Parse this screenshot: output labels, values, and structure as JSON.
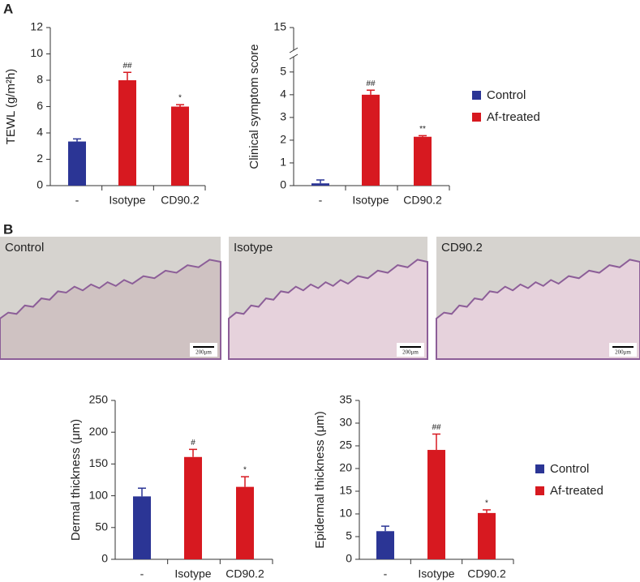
{
  "panels": [
    "A",
    "B"
  ],
  "micrographs": [
    {
      "label": "Control",
      "scale_bar": "200μm"
    },
    {
      "label": "Isotype",
      "scale_bar": "200μm"
    },
    {
      "label": "CD90.2",
      "scale_bar": "200μm"
    }
  ],
  "chart_data": [
    {
      "type": "bar",
      "y_label": "TEWL (g/m²h)",
      "categories": [
        "-",
        "Isotype",
        "CD90.2"
      ],
      "series": [
        {
          "name": "Control",
          "color": "#2b3595",
          "values": [
            3.35,
            null,
            null
          ],
          "errors": [
            0.2,
            null,
            null
          ]
        },
        {
          "name": "Af-treated",
          "color": "#d71920",
          "values": [
            null,
            8.0,
            6.0
          ],
          "errors": [
            null,
            0.6,
            0.15
          ]
        }
      ],
      "significance": [
        null,
        "##",
        "*"
      ],
      "ylim": [
        0,
        12
      ],
      "yticks": [
        0,
        2,
        4,
        6,
        8,
        10,
        12
      ],
      "legend": false
    },
    {
      "type": "bar",
      "y_label": "Clinical symptom score",
      "categories": [
        "-",
        "Isotype",
        "CD90.2"
      ],
      "series": [
        {
          "name": "Control",
          "color": "#2b3595",
          "values": [
            0.1,
            null,
            null
          ],
          "errors": [
            0.15,
            null,
            null
          ]
        },
        {
          "name": "Af-treated",
          "color": "#d71920",
          "values": [
            null,
            4.0,
            2.15
          ],
          "errors": [
            null,
            0.2,
            0.05
          ]
        }
      ],
      "significance": [
        null,
        "##",
        "**"
      ],
      "ylim": [
        0,
        15
      ],
      "y_break": [
        5.6,
        14.6
      ],
      "yticks": [
        0,
        1,
        2,
        3,
        4,
        5,
        15
      ],
      "legend": true
    },
    {
      "type": "bar",
      "y_label": "Dermal thickness (μm)",
      "categories": [
        "-",
        "Isotype",
        "CD90.2"
      ],
      "series": [
        {
          "name": "Control",
          "color": "#2b3595",
          "values": [
            99,
            null,
            null
          ],
          "errors": [
            13,
            null,
            null
          ]
        },
        {
          "name": "Af-treated",
          "color": "#d71920",
          "values": [
            null,
            161,
            114
          ],
          "errors": [
            null,
            12,
            16
          ]
        }
      ],
      "significance": [
        null,
        "#",
        "*"
      ],
      "ylim": [
        0,
        250
      ],
      "yticks": [
        0,
        50,
        100,
        150,
        200,
        250
      ],
      "legend": false
    },
    {
      "type": "bar",
      "y_label": "Epidermal thickness (μm)",
      "categories": [
        "-",
        "Isotype",
        "CD90.2"
      ],
      "series": [
        {
          "name": "Control",
          "color": "#2b3595",
          "values": [
            6.2,
            null,
            null
          ],
          "errors": [
            1.1,
            null,
            null
          ]
        },
        {
          "name": "Af-treated",
          "color": "#d71920",
          "values": [
            null,
            24.1,
            10.2
          ],
          "errors": [
            null,
            3.5,
            0.7
          ]
        }
      ],
      "significance": [
        null,
        "##",
        "*"
      ],
      "ylim": [
        0,
        35
      ],
      "yticks": [
        0,
        5,
        10,
        15,
        20,
        25,
        30,
        35
      ],
      "legend": true
    }
  ]
}
